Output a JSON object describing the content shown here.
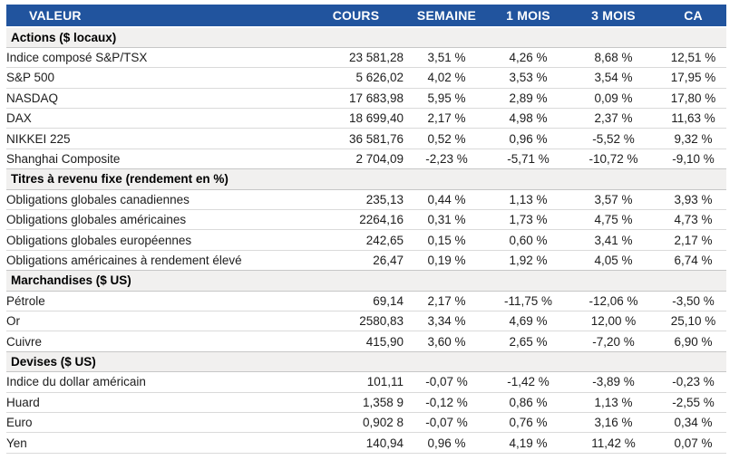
{
  "colors": {
    "header_bg": "#21549E",
    "header_text": "#FFFFFF",
    "positive": "#19A55A",
    "negative": "#EC1C24",
    "section_bg": "#F1F0EF"
  },
  "table": {
    "columns": [
      "VALEUR",
      "COURS",
      "SEMAINE",
      "1 MOIS",
      "3 MOIS",
      "CA"
    ],
    "sections": [
      {
        "title": "Actions ($ locaux)",
        "rows": [
          {
            "cells": [
              "Indice composé S&P/TSX",
              "23 581,28",
              "3,51 %",
              "4,26 %",
              "8,68 %",
              "12,51 %"
            ]
          },
          {
            "cells": [
              "S&P 500",
              "5 626,02",
              "4,02 %",
              "3,53 %",
              "3,54 %",
              "17,95 %"
            ]
          },
          {
            "cells": [
              "NASDAQ",
              "17 683,98",
              "5,95 %",
              "2,89 %",
              "0,09 %",
              "17,80 %"
            ]
          },
          {
            "cells": [
              "DAX",
              "18 699,40",
              "2,17 %",
              "4,98 %",
              "2,37 %",
              "11,63 %"
            ]
          },
          {
            "cells": [
              "NIKKEI 225",
              "36 581,76",
              "0,52 %",
              "0,96 %",
              "-5,52 %",
              "9,32 %"
            ]
          },
          {
            "cells": [
              "Shanghai Composite",
              "2 704,09",
              "-2,23 %",
              "-5,71 %",
              "-10,72 %",
              "-9,10 %"
            ]
          }
        ]
      },
      {
        "title": "Titres à revenu fixe (rendement en %)",
        "rows": [
          {
            "cells": [
              "Obligations globales canadiennes",
              "235,13",
              "0,44 %",
              "1,13 %",
              "3,57 %",
              "3,93 %"
            ]
          },
          {
            "cells": [
              "Obligations globales américaines",
              "2264,16",
              "0,31 %",
              "1,73 %",
              "4,75 %",
              "4,73 %"
            ]
          },
          {
            "cells": [
              "Obligations globales européennes",
              "242,65",
              "0,15 %",
              "0,60 %",
              "3,41 %",
              "2,17 %"
            ]
          },
          {
            "cells": [
              "Obligations américaines à rendement élevé",
              "26,47",
              "0,19 %",
              "1,92 %",
              "4,05 %",
              "6,74 %"
            ]
          }
        ]
      },
      {
        "title": "Marchandises ($ US)",
        "rows": [
          {
            "cells": [
              "Pétrole",
              "69,14",
              "2,17 %",
              "-11,75 %",
              "-12,06 %",
              "-3,50 %"
            ]
          },
          {
            "cells": [
              "Or",
              "2580,83",
              "3,34 %",
              "4,69 %",
              "12,00 %",
              "25,10 %"
            ]
          },
          {
            "cells": [
              "Cuivre",
              "415,90",
              "3,60 %",
              "2,65 %",
              "-7,20 %",
              "6,90 %"
            ]
          }
        ]
      },
      {
        "title": "Devises ($ US)",
        "rows": [
          {
            "cells": [
              "Indice du dollar américain",
              "101,11",
              "-0,07 %",
              "-1,42 %",
              "-3,89 %",
              "-0,23 %"
            ]
          },
          {
            "cells": [
              "Huard",
              "1,358 9",
              "-0,12 %",
              "0,86 %",
              "1,13 %",
              "-2,55 %"
            ]
          },
          {
            "cells": [
              "Euro",
              "0,902 8",
              "-0,07 %",
              "0,76 %",
              "3,16 %",
              "0,34 %"
            ]
          },
          {
            "cells": [
              "Yen",
              "140,94",
              "0,96 %",
              "4,19 %",
              "11,42 %",
              "0,07 %"
            ]
          }
        ]
      }
    ]
  }
}
